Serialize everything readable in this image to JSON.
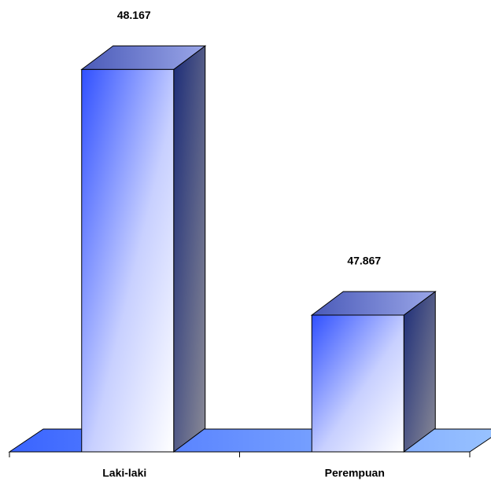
{
  "chart_data": {
    "type": "bar3d",
    "categories": [
      "Laki-laki",
      "Perempuan"
    ],
    "values": [
      48.167,
      47.867
    ],
    "ylim": [
      47.7,
      48.2
    ],
    "color": "#3a5cff"
  }
}
